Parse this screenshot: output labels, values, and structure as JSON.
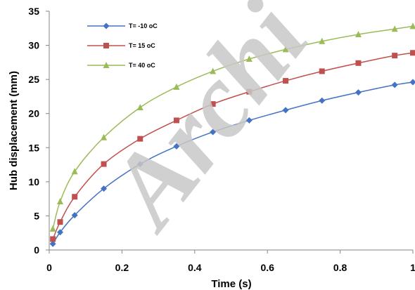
{
  "watermark": "Archi",
  "chart_data": {
    "type": "line",
    "xlabel": "Time  (s)",
    "ylabel": "Hub displacement (mm)",
    "xlim": [
      0,
      1
    ],
    "ylim": [
      0,
      35
    ],
    "xticks": [
      0,
      0.2,
      0.4,
      0.6,
      0.8,
      1
    ],
    "xtick_labels": [
      "0",
      "0.2",
      "0.4",
      "0.6",
      "0.8",
      "1"
    ],
    "yticks": [
      0,
      5,
      10,
      15,
      20,
      25,
      30,
      35
    ],
    "ytick_labels": [
      "0",
      "5",
      "10",
      "15",
      "20",
      "25",
      "30",
      "35"
    ],
    "grid": false,
    "legend_position": "top-left",
    "x": [
      0.01,
      0.03,
      0.07,
      0.15,
      0.25,
      0.35,
      0.45,
      0.55,
      0.65,
      0.75,
      0.85,
      0.95,
      1.0
    ],
    "series": [
      {
        "name": "T= -10 oC",
        "color": "#4472C4",
        "marker": "diamond",
        "values": [
          0.9,
          2.6,
          5.1,
          9.0,
          12.6,
          15.2,
          17.3,
          19.0,
          20.5,
          21.9,
          23.1,
          24.2,
          24.6
        ]
      },
      {
        "name": "T= 15 oC",
        "color": "#C0504D",
        "marker": "square",
        "values": [
          1.6,
          4.1,
          7.8,
          12.6,
          16.3,
          19.0,
          21.4,
          23.2,
          24.8,
          26.2,
          27.4,
          28.5,
          28.9
        ]
      },
      {
        "name": "T= 40 oC",
        "color": "#9BBB59",
        "marker": "triangle",
        "values": [
          3.1,
          7.1,
          11.5,
          16.5,
          20.9,
          23.9,
          26.2,
          28.0,
          29.4,
          30.6,
          31.6,
          32.4,
          32.8
        ]
      }
    ]
  }
}
